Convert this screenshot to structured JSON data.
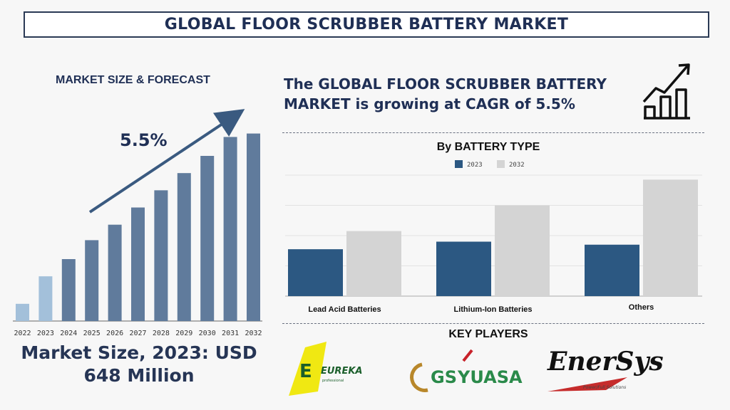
{
  "title": "GLOBAL FLOOR SCRUBBER BATTERY MARKET",
  "market_size_forecast_label": "MARKET SIZE & FORECAST",
  "cagr_label": "5.5%",
  "growth_text": "The GLOBAL FLOOR SCRUBBER BATTERY MARKET is growing at CAGR of 5.5%",
  "market_size_text": "Market Size, 2023: USD 648 Million",
  "battery_type_title": "By BATTERY TYPE",
  "key_players_title": "KEY PLAYERS",
  "key_players": {
    "eureka": "EUREKA",
    "eureka_sub": "professional",
    "gs": "GS",
    "yuasa": "YUASA",
    "enersys": "EnerSys",
    "enersys_tagline": "Power/Full Solutions"
  },
  "colors": {
    "navy": "#1f2f55",
    "bar_dark": "#607b9c",
    "bar_light": "#a3c0da",
    "series_2023": "#2c5882",
    "series_2032": "#d4d4d4"
  },
  "icons": [
    "growth-chart-icon",
    "trend-arrow-icon"
  ],
  "chart_data": [
    {
      "type": "bar",
      "title": "MARKET SIZE & FORECAST",
      "categories": [
        "2022",
        "2023",
        "2024",
        "2025",
        "2026",
        "2027",
        "2028",
        "2029",
        "2030",
        "2031",
        "2032"
      ],
      "values": [
        1.0,
        2.6,
        3.6,
        4.7,
        5.6,
        6.6,
        7.6,
        8.6,
        9.6,
        10.7,
        10.9
      ],
      "highlighted": [
        "2022",
        "2023"
      ],
      "ylim": [
        0,
        12
      ]
    },
    {
      "type": "bar",
      "title": "By BATTERY TYPE",
      "categories": [
        "Lead Acid Batteries",
        "Lithium-Ion Batteries",
        "Others"
      ],
      "series": [
        {
          "name": "2023",
          "values": [
            3.1,
            3.6,
            3.4
          ]
        },
        {
          "name": "2032",
          "values": [
            4.3,
            6.0,
            7.7
          ]
        }
      ],
      "ylim": [
        0,
        8
      ],
      "grid": true,
      "legend": "top-center"
    }
  ]
}
